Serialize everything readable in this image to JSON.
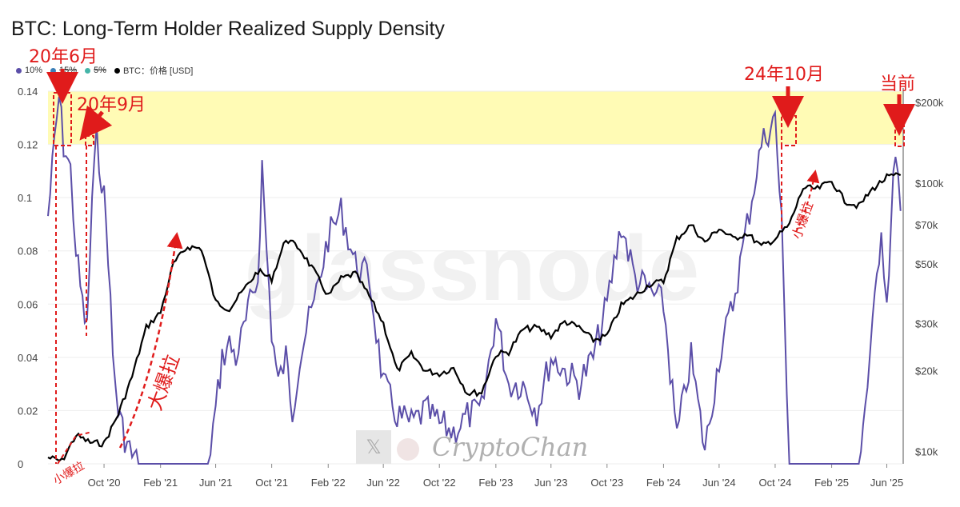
{
  "chart_data": {
    "type": "line",
    "title": "BTC: Long-Term Holder Realized Supply Density",
    "legend": [
      "10%",
      "15%",
      "5%",
      "BTC：价格 [USD]"
    ],
    "legend_colors": [
      "#5b4ea8",
      "#3a7fb8",
      "#45b5a8",
      "#000000"
    ],
    "legend_struck": [
      false,
      true,
      true,
      false
    ],
    "x_ticks": [
      "Oct '20",
      "Feb '21",
      "Jun '21",
      "Oct '21",
      "Feb '22",
      "Jun '22",
      "Oct '22",
      "Feb '23",
      "Jun '23",
      "Oct '23",
      "Feb '24",
      "Jun '24",
      "Oct '24",
      "Feb '25",
      "Jun '25"
    ],
    "y_left_ticks": [
      "0",
      "0.02",
      "0.04",
      "0.06",
      "0.08",
      "0.1",
      "0.12",
      "0.14"
    ],
    "y_left_range": [
      0,
      0.14
    ],
    "y_right_ticks": [
      "$10k",
      "$20k",
      "$30k",
      "$50k",
      "$70k",
      "$100k",
      "$200k"
    ],
    "y_right_scale": "log",
    "highlight_band": [
      0.12,
      0.14
    ],
    "watermark": "glassnode",
    "series": [
      {
        "name": "10%",
        "color": "#5b4ea8",
        "points": [
          [
            "2020-06-01",
            0.093
          ],
          [
            "2020-06-15",
            0.12
          ],
          [
            "2020-06-25",
            0.138
          ],
          [
            "2020-07-05",
            0.12
          ],
          [
            "2020-07-20",
            0.11
          ],
          [
            "2020-08-01",
            0.08
          ],
          [
            "2020-08-15",
            0.06
          ],
          [
            "2020-08-25",
            0.05
          ],
          [
            "2020-09-05",
            0.1
          ],
          [
            "2020-09-15",
            0.122
          ],
          [
            "2020-10-01",
            0.1
          ],
          [
            "2020-10-10",
            0.08
          ],
          [
            "2020-10-20",
            0.04
          ],
          [
            "2020-11-01",
            0.02
          ],
          [
            "2020-11-15",
            0.01
          ],
          [
            "2020-12-01",
            0.003
          ],
          [
            "2020-12-15",
            0.0
          ],
          [
            "2021-05-15",
            0.0
          ],
          [
            "2021-06-01",
            0.02
          ],
          [
            "2021-06-15",
            0.04
          ],
          [
            "2021-07-01",
            0.045
          ],
          [
            "2021-07-15",
            0.04
          ],
          [
            "2021-08-01",
            0.05
          ],
          [
            "2021-08-15",
            0.06
          ],
          [
            "2021-09-01",
            0.07
          ],
          [
            "2021-09-10",
            0.112
          ],
          [
            "2021-09-20",
            0.08
          ],
          [
            "2021-10-01",
            0.05
          ],
          [
            "2021-10-15",
            0.03
          ],
          [
            "2021-11-01",
            0.04
          ],
          [
            "2021-11-15",
            0.02
          ],
          [
            "2021-12-01",
            0.04
          ],
          [
            "2021-12-15",
            0.05
          ],
          [
            "2022-01-01",
            0.06
          ],
          [
            "2022-02-01",
            0.085
          ],
          [
            "2022-03-01",
            0.095
          ],
          [
            "2022-04-01",
            0.075
          ],
          [
            "2022-05-01",
            0.07
          ],
          [
            "2022-06-01",
            0.03
          ],
          [
            "2022-07-01",
            0.018
          ],
          [
            "2022-08-01",
            0.015
          ],
          [
            "2022-09-01",
            0.02
          ],
          [
            "2022-10-01",
            0.015
          ],
          [
            "2022-11-01",
            0.012
          ],
          [
            "2022-12-01",
            0.018
          ],
          [
            "2023-01-01",
            0.02
          ],
          [
            "2023-02-01",
            0.055
          ],
          [
            "2023-03-01",
            0.03
          ],
          [
            "2023-04-01",
            0.03
          ],
          [
            "2023-05-01",
            0.02
          ],
          [
            "2023-06-01",
            0.04
          ],
          [
            "2023-07-01",
            0.035
          ],
          [
            "2023-08-01",
            0.03
          ],
          [
            "2023-09-01",
            0.04
          ],
          [
            "2023-10-01",
            0.06
          ],
          [
            "2023-11-01",
            0.09
          ],
          [
            "2023-12-01",
            0.07
          ],
          [
            "2024-01-01",
            0.065
          ],
          [
            "2024-02-01",
            0.06
          ],
          [
            "2024-03-01",
            0.01
          ],
          [
            "2024-04-01",
            0.04
          ],
          [
            "2024-05-01",
            0.005
          ],
          [
            "2024-06-01",
            0.04
          ],
          [
            "2024-07-01",
            0.06
          ],
          [
            "2024-08-01",
            0.09
          ],
          [
            "2024-09-01",
            0.12
          ],
          [
            "2024-10-01",
            0.13
          ],
          [
            "2024-10-15",
            0.09
          ],
          [
            "2024-11-01",
            0.0
          ],
          [
            "2025-04-01",
            0.0
          ],
          [
            "2025-04-20",
            0.03
          ],
          [
            "2025-05-01",
            0.05
          ],
          [
            "2025-05-20",
            0.09
          ],
          [
            "2025-06-01",
            0.06
          ],
          [
            "2025-06-20",
            0.12
          ],
          [
            "2025-07-01",
            0.095
          ]
        ]
      },
      {
        "name": "BTC：价格 [USD]",
        "color": "#000000",
        "points": [
          [
            "2020-06-01",
            9500
          ],
          [
            "2020-07-01",
            9200
          ],
          [
            "2020-08-01",
            11500
          ],
          [
            "2020-09-01",
            10800
          ],
          [
            "2020-10-01",
            10700
          ],
          [
            "2020-11-01",
            13800
          ],
          [
            "2020-12-01",
            19000
          ],
          [
            "2021-01-01",
            29000
          ],
          [
            "2021-02-01",
            33000
          ],
          [
            "2021-03-01",
            50000
          ],
          [
            "2021-04-01",
            58000
          ],
          [
            "2021-05-01",
            57000
          ],
          [
            "2021-06-01",
            36000
          ],
          [
            "2021-07-01",
            34000
          ],
          [
            "2021-08-01",
            40000
          ],
          [
            "2021-09-01",
            47000
          ],
          [
            "2021-10-01",
            44000
          ],
          [
            "2021-11-01",
            62000
          ],
          [
            "2021-12-01",
            57000
          ],
          [
            "2022-01-01",
            47000
          ],
          [
            "2022-02-01",
            38000
          ],
          [
            "2022-03-01",
            44000
          ],
          [
            "2022-04-01",
            46000
          ],
          [
            "2022-05-01",
            38000
          ],
          [
            "2022-06-01",
            30000
          ],
          [
            "2022-07-01",
            20000
          ],
          [
            "2022-08-01",
            23000
          ],
          [
            "2022-09-01",
            20000
          ],
          [
            "2022-10-01",
            19500
          ],
          [
            "2022-11-01",
            20500
          ],
          [
            "2022-12-01",
            16500
          ],
          [
            "2023-01-01",
            16600
          ],
          [
            "2023-02-01",
            23000
          ],
          [
            "2023-03-01",
            23500
          ],
          [
            "2023-04-01",
            28500
          ],
          [
            "2023-05-01",
            29000
          ],
          [
            "2023-06-01",
            27000
          ],
          [
            "2023-07-01",
            30500
          ],
          [
            "2023-08-01",
            29000
          ],
          [
            "2023-09-01",
            26000
          ],
          [
            "2023-10-01",
            27000
          ],
          [
            "2023-11-01",
            35000
          ],
          [
            "2023-12-01",
            38000
          ],
          [
            "2024-01-01",
            42000
          ],
          [
            "2024-02-01",
            43000
          ],
          [
            "2024-03-01",
            62000
          ],
          [
            "2024-04-01",
            70000
          ],
          [
            "2024-05-01",
            60000
          ],
          [
            "2024-06-01",
            68000
          ],
          [
            "2024-07-01",
            62000
          ],
          [
            "2024-08-01",
            65000
          ],
          [
            "2024-09-01",
            58000
          ],
          [
            "2024-10-01",
            62000
          ],
          [
            "2024-11-01",
            70000
          ],
          [
            "2024-12-01",
            96000
          ],
          [
            "2025-01-01",
            95000
          ],
          [
            "2025-02-01",
            102000
          ],
          [
            "2025-03-01",
            86000
          ],
          [
            "2025-04-01",
            82000
          ],
          [
            "2025-05-01",
            95000
          ],
          [
            "2025-06-01",
            105000
          ],
          [
            "2025-07-01",
            107000
          ]
        ]
      }
    ],
    "annotations": [
      {
        "text": "20年6月",
        "kind": "label"
      },
      {
        "text": "20年9月",
        "kind": "label"
      },
      {
        "text": "24年10月",
        "kind": "label"
      },
      {
        "text": "当前",
        "kind": "label"
      },
      {
        "text": "小爆拉",
        "kind": "label"
      },
      {
        "text": "大爆拉",
        "kind": "label"
      },
      {
        "text": "小爆拉",
        "kind": "label"
      }
    ],
    "branding": {
      "text": "CryptoChan",
      "icon": "x-logo-icon"
    }
  }
}
